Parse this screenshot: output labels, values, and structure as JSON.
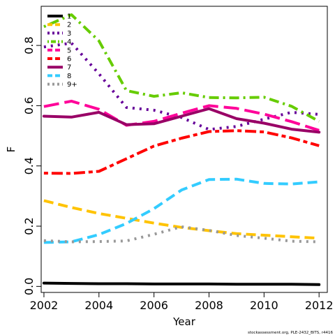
{
  "chart_data": {
    "type": "line",
    "xlabel": "Year",
    "ylabel": "F",
    "xlim": [
      2001.9,
      2012.3
    ],
    "ylim": [
      -0.02,
      0.93
    ],
    "xticks": [
      2002,
      2004,
      2006,
      2008,
      2010,
      2012
    ],
    "yticks": [
      0.0,
      0.2,
      0.4,
      0.6,
      0.8
    ],
    "ytick_labels": [
      "0.0",
      "0.2",
      "0.4",
      "0.6",
      "0.8"
    ],
    "legend_position": "top-left",
    "grid": false,
    "x": [
      2002,
      2003,
      2004,
      2005,
      2006,
      2007,
      2008,
      2009,
      2010,
      2011,
      2012
    ],
    "series": [
      {
        "name": "1",
        "color": "#000000",
        "dash": "solid",
        "values": [
          0.011,
          0.01,
          0.009,
          0.009,
          0.008,
          0.008,
          0.008,
          0.007,
          0.007,
          0.007,
          0.006
        ]
      },
      {
        "name": "2",
        "color": "#FFC300",
        "dash": "dashed",
        "values": [
          0.285,
          0.262,
          0.242,
          0.226,
          0.21,
          0.196,
          0.185,
          0.175,
          0.17,
          0.165,
          0.16
        ]
      },
      {
        "name": "3",
        "color": "#660099",
        "dash": "dotted",
        "values": [
          0.795,
          0.808,
          0.706,
          0.594,
          0.585,
          0.561,
          0.521,
          0.531,
          0.555,
          0.578,
          0.571
        ]
      },
      {
        "name": "4",
        "color": "#66CC00",
        "dash": "dotdash",
        "values": [
          0.862,
          0.902,
          0.815,
          0.65,
          0.631,
          0.643,
          0.627,
          0.626,
          0.628,
          0.598,
          0.548
        ]
      },
      {
        "name": "5",
        "color": "#FF0099",
        "dash": "longdash",
        "values": [
          0.597,
          0.615,
          0.588,
          0.535,
          0.548,
          0.575,
          0.6,
          0.591,
          0.572,
          0.547,
          0.518
        ]
      },
      {
        "name": "6",
        "color": "#FF0000",
        "dash": "twodash",
        "values": [
          0.376,
          0.375,
          0.382,
          0.424,
          0.466,
          0.492,
          0.514,
          0.517,
          0.513,
          0.493,
          0.467
        ]
      },
      {
        "name": "7",
        "color": "#990066",
        "dash": "solid",
        "values": [
          0.565,
          0.562,
          0.578,
          0.537,
          0.54,
          0.565,
          0.59,
          0.557,
          0.542,
          0.522,
          0.512
        ]
      },
      {
        "name": "8",
        "color": "#33CCFF",
        "dash": "dashed",
        "values": [
          0.146,
          0.148,
          0.172,
          0.209,
          0.258,
          0.32,
          0.355,
          0.356,
          0.342,
          0.34,
          0.347
        ]
      },
      {
        "name": "9+",
        "color": "#999999",
        "dash": "dotted",
        "values": [
          0.152,
          0.148,
          0.149,
          0.151,
          0.173,
          0.198,
          0.186,
          0.169,
          0.16,
          0.15,
          0.148
        ]
      }
    ],
    "caption": "stockassessment.org, PLE-2432_BITS, r4416"
  }
}
